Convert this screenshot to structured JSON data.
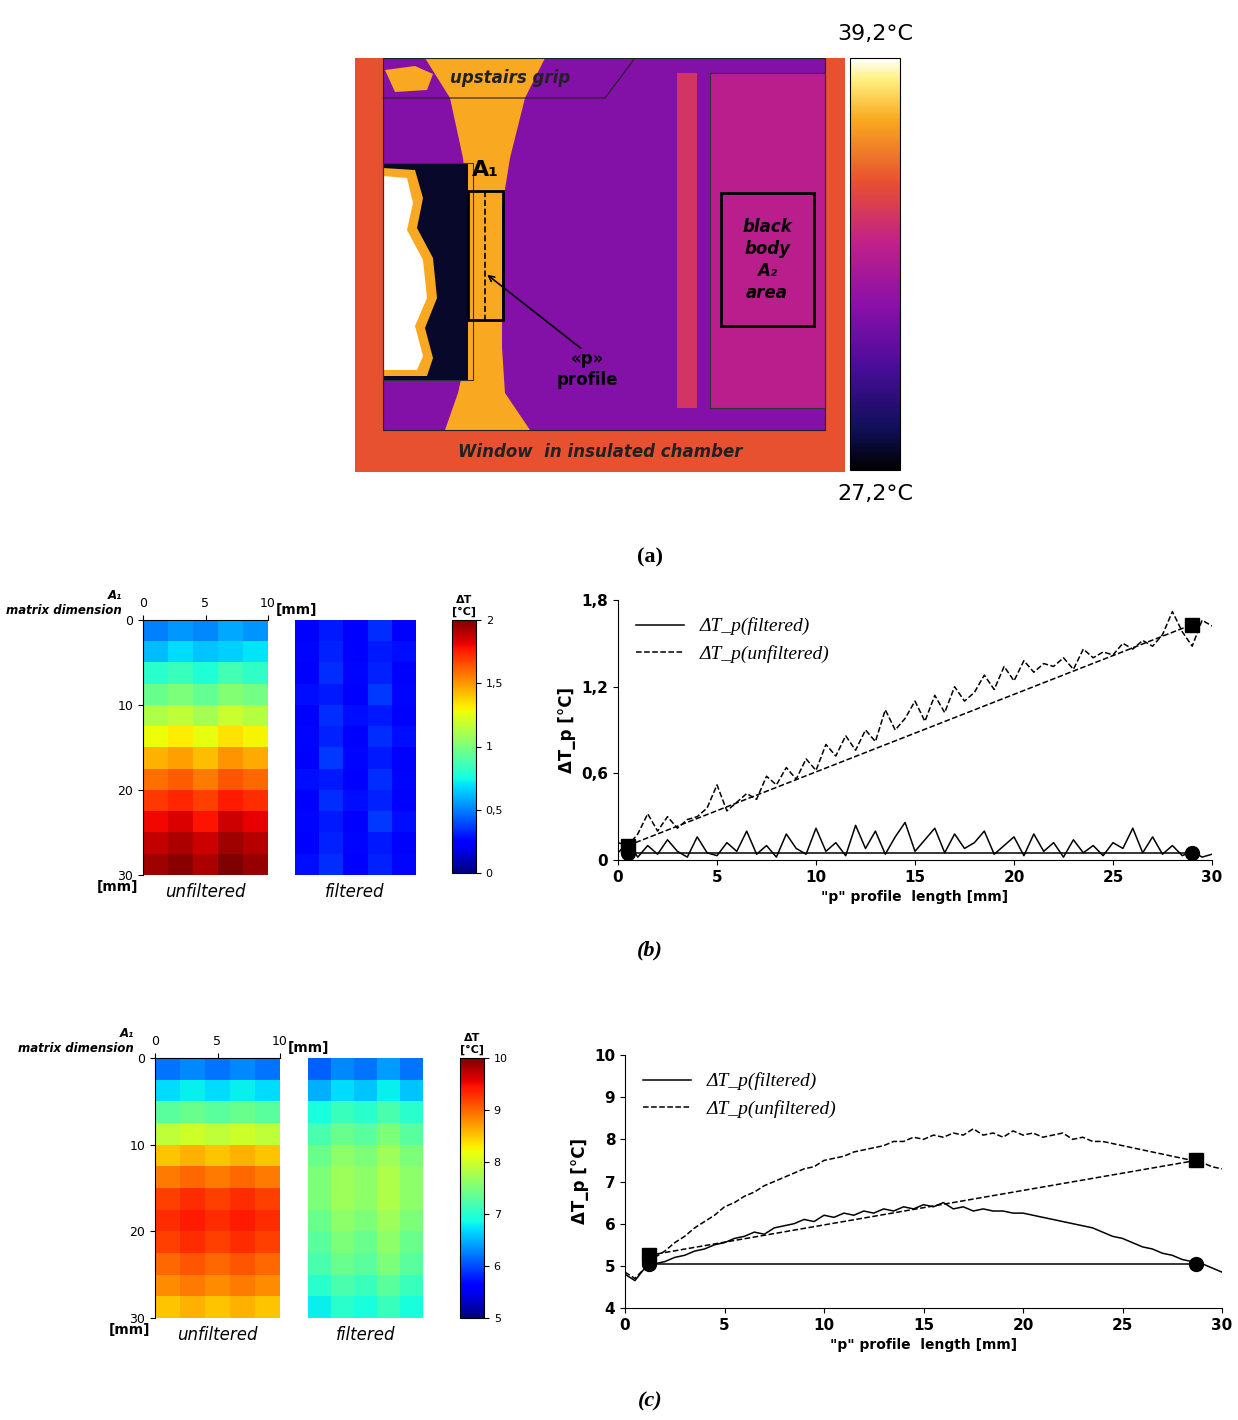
{
  "panel_labels": [
    "(a)",
    "(b)",
    "(c)"
  ],
  "chart_data": [
    {
      "type": "thermal_image",
      "annotations": {
        "grip": "upstairs grip",
        "area1": "A₁",
        "profile": "«p»\nprofile",
        "black_body": "black\nbody\nA₂\narea",
        "window": "Window  in insulated chamber"
      },
      "regions": {
        "frame": 35.6,
        "window": 31.8,
        "lamp": 34.6,
        "black_body": 33.6,
        "specimen": 37.4,
        "grip": 37.4,
        "shadow": 27.8,
        "hot_edge": 37.4,
        "hot_spot": 39.2
      },
      "colorbar": {
        "range": [
          27.2,
          39.2
        ],
        "ticks": [
          {
            "value": 27.2,
            "label": "27,2°C"
          },
          {
            "value": 39.2,
            "label": "39,2°C"
          }
        ]
      }
    },
    {
      "type": "heatmap",
      "axis_title": "A₁\nmatrix dimension",
      "x_label": "[mm]",
      "y_label": "[mm]",
      "xlim": [
        0,
        10
      ],
      "xticks": [
        0,
        5,
        10
      ],
      "ylim": [
        30,
        0
      ],
      "yticks": [
        0,
        10,
        20,
        30
      ],
      "colorbar": {
        "label": "ΔT\n[°C]",
        "range": [
          0,
          2
        ],
        "ticks": [
          0,
          {
            "value": 0.5,
            "label": "0,5"
          },
          1,
          {
            "value": 1.5,
            "label": "1,5"
          },
          2
        ]
      },
      "panels": [
        {
          "label": "unfiltered",
          "cells": [
            [
              0.5,
              0.55,
              0.52,
              0.58,
              0.54
            ],
            [
              0.62,
              0.68,
              0.64,
              0.66,
              0.7
            ],
            [
              0.8,
              0.84,
              0.78,
              0.86,
              0.82
            ],
            [
              0.96,
              1.0,
              0.94,
              1.02,
              0.98
            ],
            [
              1.12,
              1.16,
              1.1,
              1.18,
              1.14
            ],
            [
              1.28,
              1.32,
              1.26,
              1.34,
              1.3
            ],
            [
              1.44,
              1.48,
              1.42,
              1.5,
              1.46
            ],
            [
              1.58,
              1.62,
              1.56,
              1.64,
              1.6
            ],
            [
              1.7,
              1.74,
              1.68,
              1.76,
              1.72
            ],
            [
              1.8,
              1.84,
              1.78,
              1.86,
              1.82
            ],
            [
              1.88,
              1.92,
              1.86,
              1.94,
              1.9
            ],
            [
              1.94,
              1.98,
              1.92,
              2.0,
              1.96
            ]
          ]
        },
        {
          "label": "filtered",
          "tick_labels": false,
          "cells": [
            [
              0.22,
              0.3,
              0.25,
              0.34,
              0.24
            ],
            [
              0.26,
              0.32,
              0.22,
              0.3,
              0.28
            ],
            [
              0.24,
              0.34,
              0.26,
              0.32,
              0.22
            ],
            [
              0.28,
              0.3,
              0.24,
              0.36,
              0.26
            ],
            [
              0.22,
              0.34,
              0.28,
              0.3,
              0.24
            ],
            [
              0.26,
              0.32,
              0.22,
              0.34,
              0.28
            ],
            [
              0.24,
              0.36,
              0.26,
              0.3,
              0.22
            ],
            [
              0.28,
              0.3,
              0.24,
              0.34,
              0.26
            ],
            [
              0.22,
              0.34,
              0.28,
              0.32,
              0.24
            ],
            [
              0.26,
              0.3,
              0.22,
              0.36,
              0.28
            ],
            [
              0.24,
              0.32,
              0.26,
              0.3,
              0.22
            ],
            [
              0.28,
              0.34,
              0.24,
              0.32,
              0.26
            ]
          ]
        }
      ]
    },
    {
      "type": "line",
      "x_label": "\"p\" profile  length [mm]",
      "y_label": "ΔT_p [°C]",
      "xlim": [
        0,
        30
      ],
      "xticks": [
        0,
        5,
        10,
        15,
        20,
        25,
        30
      ],
      "ylim": [
        0,
        1.8
      ],
      "yticks": [
        0,
        {
          "value": 0.6,
          "label": "0,6"
        },
        {
          "value": 1.2,
          "label": "1,2"
        },
        {
          "value": 1.8,
          "label": "1,8"
        }
      ],
      "legend": "upper left",
      "x": [
        0,
        0.5,
        1,
        1.5,
        2,
        2.5,
        3,
        3.5,
        4,
        4.5,
        5,
        5.5,
        6,
        6.5,
        7,
        7.5,
        8,
        8.5,
        9,
        9.5,
        10,
        10.5,
        11,
        11.5,
        12,
        12.5,
        13,
        13.5,
        14,
        14.5,
        15,
        15.5,
        16,
        16.5,
        17,
        17.5,
        18,
        18.5,
        19,
        19.5,
        20,
        20.5,
        21,
        21.5,
        22,
        22.5,
        23,
        23.5,
        24,
        24.5,
        25,
        25.5,
        26,
        26.5,
        27,
        27.5,
        28,
        28.5,
        29,
        29.5,
        30
      ],
      "series": [
        {
          "name": "ΔT_p(filtered)",
          "color": "#000000",
          "line_style": "solid",
          "values": [
            0.05,
            0.12,
            0.02,
            0.1,
            0.04,
            0.14,
            0.06,
            0.02,
            0.16,
            0.05,
            0.03,
            0.12,
            0.06,
            0.2,
            0.04,
            0.1,
            0.02,
            0.18,
            0.08,
            0.04,
            0.22,
            0.06,
            0.12,
            0.03,
            0.24,
            0.08,
            0.2,
            0.04,
            0.16,
            0.26,
            0.06,
            0.14,
            0.22,
            0.05,
            0.18,
            0.08,
            0.12,
            0.2,
            0.04,
            0.1,
            0.16,
            0.03,
            0.18,
            0.06,
            0.12,
            0.02,
            0.14,
            0.05,
            0.1,
            0.03,
            0.12,
            0.08,
            0.22,
            0.05,
            0.16,
            0.04,
            0.1,
            0.03,
            0.06,
            0.02,
            0.04
          ]
        },
        {
          "name": "ΔT_p(unfiltered)",
          "color": "#000000",
          "line_style": "dashed",
          "values": [
            0.12,
            0.1,
            0.18,
            0.32,
            0.2,
            0.3,
            0.22,
            0.28,
            0.3,
            0.36,
            0.52,
            0.34,
            0.4,
            0.46,
            0.42,
            0.58,
            0.52,
            0.64,
            0.56,
            0.7,
            0.62,
            0.8,
            0.72,
            0.86,
            0.76,
            0.9,
            0.82,
            1.04,
            0.9,
            0.98,
            1.1,
            0.96,
            1.14,
            1.02,
            1.2,
            1.1,
            1.16,
            1.28,
            1.18,
            1.34,
            1.24,
            1.38,
            1.3,
            1.36,
            1.34,
            1.4,
            1.32,
            1.46,
            1.4,
            1.44,
            1.42,
            1.5,
            1.46,
            1.52,
            1.48,
            1.56,
            1.72,
            1.58,
            1.48,
            1.66,
            1.62
          ]
        },
        {
          "x": [
            0.5,
            29
          ],
          "values": [
            0.05,
            0.05
          ],
          "color": "#000000",
          "line_style": "solid",
          "marker": "circle"
        },
        {
          "x": [
            0.5,
            29
          ],
          "values": [
            0.1,
            1.63
          ],
          "color": "#000000",
          "line_style": "dashed",
          "marker": "square"
        }
      ]
    },
    {
      "type": "heatmap",
      "axis_title": "A₁\nmatrix dimension",
      "x_label": "[mm]",
      "y_label": "[mm]",
      "xlim": [
        0,
        10
      ],
      "xticks": [
        0,
        5,
        10
      ],
      "ylim": [
        30,
        0
      ],
      "yticks": [
        0,
        10,
        20,
        30
      ],
      "colorbar": {
        "label": "ΔT\n[°C]",
        "range": [
          5,
          10
        ],
        "ticks": [
          5,
          6,
          7,
          8,
          9,
          10
        ]
      },
      "panels": [
        {
          "label": "unfiltered",
          "cells": [
            [
              6.2,
              6.3,
              6.2,
              6.3,
              6.2
            ],
            [
              6.7,
              6.8,
              6.7,
              6.8,
              6.7
            ],
            [
              7.3,
              7.4,
              7.3,
              7.4,
              7.3
            ],
            [
              7.9,
              8.0,
              7.9,
              8.0,
              7.9
            ],
            [
              8.5,
              8.6,
              8.5,
              8.6,
              8.5
            ],
            [
              8.9,
              9.0,
              8.9,
              9.0,
              8.9
            ],
            [
              9.2,
              9.3,
              9.2,
              9.3,
              9.2
            ],
            [
              9.3,
              9.4,
              9.3,
              9.4,
              9.3
            ],
            [
              9.2,
              9.3,
              9.2,
              9.3,
              9.2
            ],
            [
              9.0,
              9.1,
              9.0,
              9.1,
              9.0
            ],
            [
              8.8,
              8.9,
              8.8,
              8.9,
              8.8
            ],
            [
              8.5,
              8.6,
              8.5,
              8.6,
              8.5
            ]
          ]
        },
        {
          "label": "filtered",
          "tick_labels": false,
          "cells": [
            [
              6.1,
              6.3,
              6.2,
              6.4,
              6.2
            ],
            [
              6.5,
              6.7,
              6.6,
              6.8,
              6.6
            ],
            [
              6.9,
              7.1,
              7.0,
              7.2,
              7.0
            ],
            [
              7.2,
              7.4,
              7.3,
              7.5,
              7.3
            ],
            [
              7.4,
              7.6,
              7.5,
              7.7,
              7.5
            ],
            [
              7.5,
              7.7,
              7.6,
              7.8,
              7.6
            ],
            [
              7.5,
              7.7,
              7.6,
              7.8,
              7.6
            ],
            [
              7.4,
              7.6,
              7.5,
              7.7,
              7.5
            ],
            [
              7.3,
              7.5,
              7.4,
              7.6,
              7.4
            ],
            [
              7.2,
              7.4,
              7.3,
              7.5,
              7.3
            ],
            [
              7.0,
              7.2,
              7.1,
              7.3,
              7.1
            ],
            [
              6.8,
              7.0,
              6.9,
              7.1,
              6.9
            ]
          ]
        }
      ]
    },
    {
      "type": "line",
      "x_label": "\"p\" profile  length [mm]",
      "y_label": "ΔT_p [°C]",
      "xlim": [
        0,
        30
      ],
      "xticks": [
        0,
        5,
        10,
        15,
        20,
        25,
        30
      ],
      "ylim": [
        4,
        10
      ],
      "yticks": [
        4,
        5,
        6,
        7,
        8,
        9,
        10
      ],
      "legend": "upper left",
      "x": [
        0,
        0.5,
        1,
        1.5,
        2,
        2.5,
        3,
        3.5,
        4,
        4.5,
        5,
        5.5,
        6,
        6.5,
        7,
        7.5,
        8,
        8.5,
        9,
        9.5,
        10,
        10.5,
        11,
        11.5,
        12,
        12.5,
        13,
        13.5,
        14,
        14.5,
        15,
        15.5,
        16,
        16.5,
        17,
        17.5,
        18,
        18.5,
        19,
        19.5,
        20,
        20.5,
        21,
        21.5,
        22,
        22.5,
        23,
        23.5,
        24,
        24.5,
        25,
        25.5,
        26,
        26.5,
        27,
        27.5,
        28,
        28.5,
        29,
        29.5,
        30
      ],
      "series": [
        {
          "name": "ΔT_p(filtered)",
          "color": "#000000",
          "line_style": "solid",
          "values": [
            4.8,
            4.65,
            4.95,
            5.05,
            5.1,
            5.2,
            5.25,
            5.35,
            5.4,
            5.5,
            5.55,
            5.65,
            5.7,
            5.8,
            5.75,
            5.9,
            5.95,
            6.0,
            6.1,
            6.05,
            6.2,
            6.15,
            6.25,
            6.2,
            6.3,
            6.25,
            6.35,
            6.3,
            6.4,
            6.35,
            6.45,
            6.4,
            6.5,
            6.35,
            6.4,
            6.3,
            6.35,
            6.3,
            6.3,
            6.25,
            6.25,
            6.2,
            6.15,
            6.1,
            6.05,
            6.0,
            5.95,
            5.9,
            5.8,
            5.7,
            5.65,
            5.55,
            5.45,
            5.4,
            5.3,
            5.25,
            5.15,
            5.1,
            5.05,
            4.95,
            4.85
          ]
        },
        {
          "name": "ΔT_p(unfiltered)",
          "color": "#000000",
          "line_style": "dashed",
          "values": [
            4.85,
            4.7,
            4.95,
            5.2,
            5.35,
            5.55,
            5.7,
            5.9,
            6.05,
            6.2,
            6.4,
            6.5,
            6.65,
            6.75,
            6.9,
            7.0,
            7.1,
            7.2,
            7.3,
            7.35,
            7.5,
            7.55,
            7.6,
            7.7,
            7.75,
            7.8,
            7.85,
            7.95,
            7.95,
            8.05,
            8.0,
            8.1,
            8.05,
            8.15,
            8.1,
            8.25,
            8.1,
            8.15,
            8.05,
            8.2,
            8.1,
            8.15,
            8.05,
            8.1,
            8.15,
            8.0,
            8.05,
            7.95,
            7.95,
            7.9,
            7.85,
            7.8,
            7.75,
            7.7,
            7.65,
            7.6,
            7.55,
            7.5,
            7.45,
            7.35,
            7.3
          ]
        },
        {
          "x": [
            1.2,
            28.7
          ],
          "values": [
            5.05,
            5.05
          ],
          "color": "#000000",
          "line_style": "solid",
          "marker": "circle"
        },
        {
          "x": [
            1.2,
            28.7
          ],
          "values": [
            5.25,
            7.5
          ],
          "color": "#000000",
          "line_style": "dashed",
          "marker": "square"
        }
      ]
    }
  ]
}
